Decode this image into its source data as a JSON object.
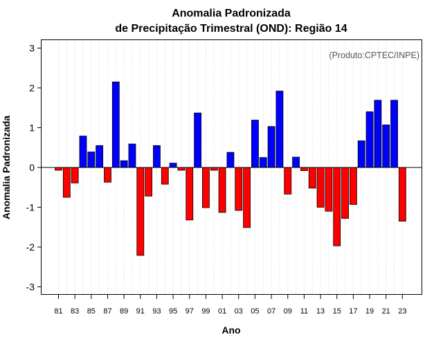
{
  "chart_data": {
    "type": "bar",
    "title": "Anomalia Padronizada",
    "subtitle": "de Precipitação Trimestral (OND): Região 14",
    "xlabel": "Ano",
    "ylabel": "Anomalia Padronizada",
    "annotation": "(Produto:CPTEC/INPE)",
    "ylim": [
      -3.2,
      3.2
    ],
    "yticks": [
      -3,
      -2,
      -1,
      0,
      1,
      2,
      3
    ],
    "grid": "vertical dotted",
    "colors": {
      "positive": "#0000ff",
      "negative": "#ff0000",
      "zero_line": "#000000"
    },
    "categories": [
      "81",
      "82",
      "83",
      "84",
      "85",
      "86",
      "87",
      "88",
      "89",
      "90",
      "91",
      "92",
      "93",
      "94",
      "95",
      "96",
      "97",
      "98",
      "99",
      "00",
      "01",
      "02",
      "03",
      "04",
      "05",
      "06",
      "07",
      "08",
      "09",
      "10",
      "11",
      "12",
      "13",
      "14",
      "15",
      "16",
      "17",
      "18",
      "19",
      "20",
      "21",
      "22",
      "23"
    ],
    "xtick_labels": [
      "81",
      "83",
      "85",
      "87",
      "89",
      "91",
      "93",
      "95",
      "97",
      "99",
      "01",
      "03",
      "05",
      "07",
      "09",
      "11",
      "13",
      "15",
      "17",
      "19",
      "21",
      "23"
    ],
    "values": [
      -0.07,
      -0.75,
      -0.39,
      0.79,
      0.39,
      0.55,
      -0.37,
      2.15,
      0.17,
      0.59,
      -2.21,
      -0.72,
      0.55,
      -0.42,
      0.11,
      -0.07,
      -1.32,
      1.37,
      -1.01,
      -0.07,
      -1.13,
      0.38,
      -1.08,
      -1.51,
      1.19,
      0.25,
      1.03,
      1.92,
      -0.67,
      0.26,
      -0.08,
      -0.52,
      -1.0,
      -1.1,
      -1.97,
      -1.28,
      -0.93,
      0.67,
      1.4,
      1.69,
      1.07,
      1.69,
      -1.35
    ]
  }
}
